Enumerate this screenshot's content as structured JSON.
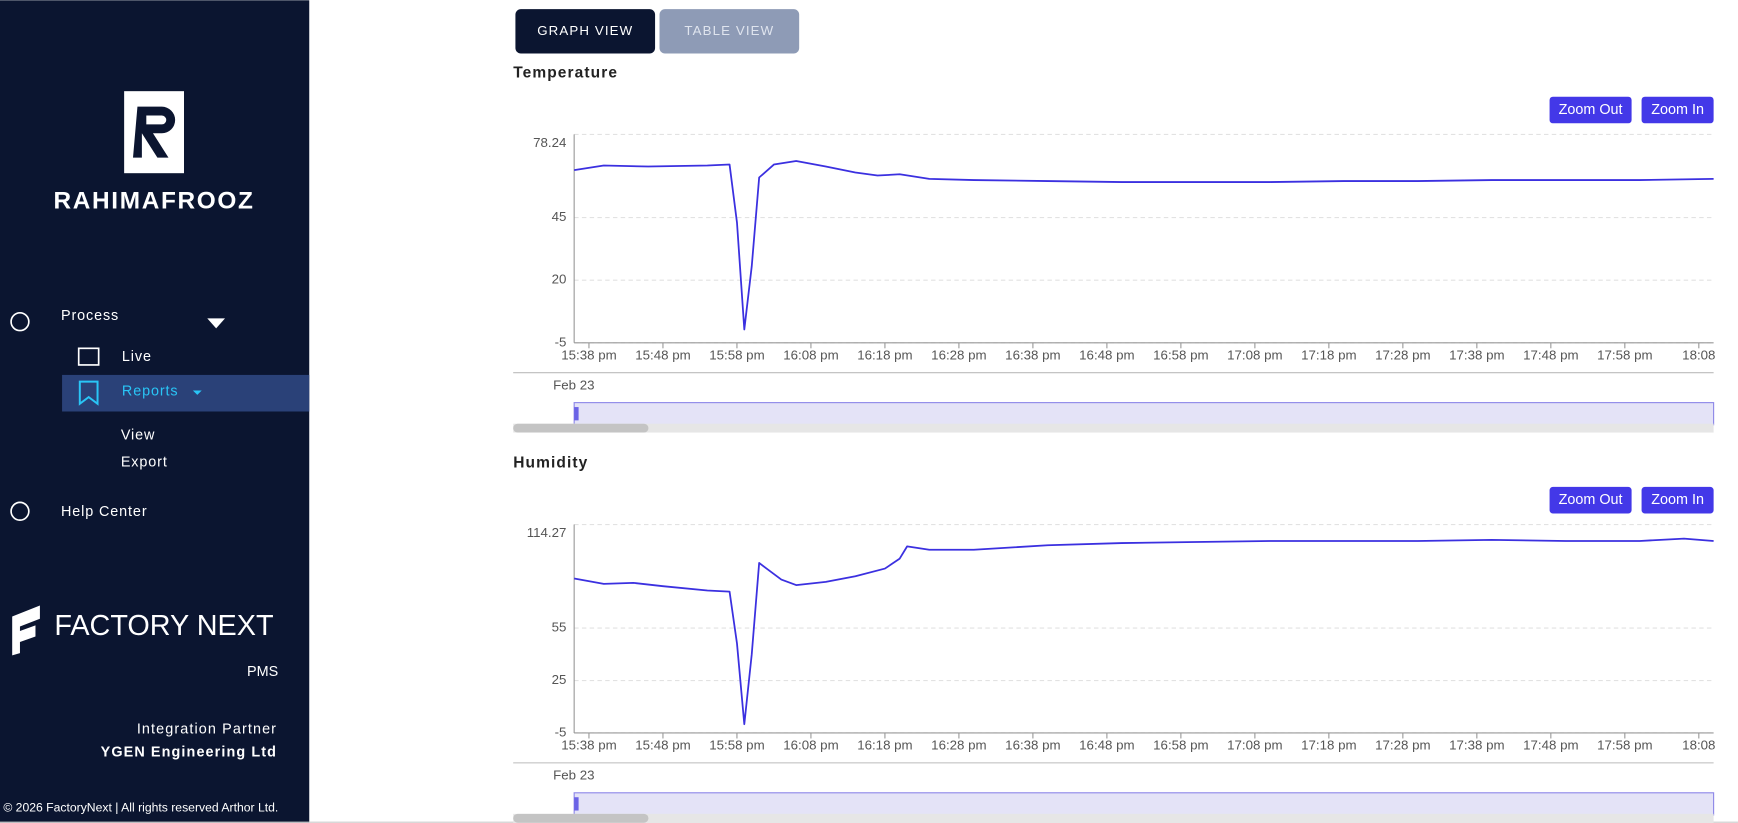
{
  "sidebar": {
    "brand": "RAHIMAFROOZ",
    "menu": {
      "process": "Process",
      "live": "Live",
      "reports": "Reports",
      "view": "View",
      "export": "Export",
      "help": "Help Center"
    },
    "partner_logo": "FACTORY NEXT",
    "product": "PMS",
    "partner_caption": "Integration Partner",
    "partner_name": "YGEN Engineering Ltd",
    "footer": "© 2026 FactoryNext | All rights reserved Arthor Ltd."
  },
  "tabs": [
    "GRAPH VIEW",
    "TABLE VIEW"
  ],
  "chart_data": [
    {
      "type": "line",
      "title": "Temperature",
      "controls": [
        "Zoom Out",
        "Zoom In"
      ],
      "navigator_date": "Feb 23",
      "color": "#3b30e0",
      "grid": true,
      "x": [
        "15:36",
        "15:40",
        "15:46",
        "15:54",
        "15:57",
        "15:58",
        "15:59",
        "16:00",
        "16:01",
        "16:03",
        "16:06",
        "16:10",
        "16:14",
        "16:17",
        "16:20",
        "16:24",
        "16:30",
        "16:40",
        "16:50",
        "17:00",
        "17:10",
        "17:20",
        "17:30",
        "17:40",
        "17:50",
        "18:00",
        "18:10"
      ],
      "values": [
        64,
        65.8,
        65.4,
        65.8,
        66.2,
        43,
        0.3,
        25.5,
        61,
        66.2,
        67.6,
        65.4,
        63,
        61.8,
        62.3,
        60.5,
        60,
        59.6,
        59.2,
        59.2,
        59.2,
        59.6,
        59.6,
        60,
        60,
        60,
        60.5
      ],
      "xlim": [
        "15:36",
        "18:10"
      ],
      "xticks": [
        {
          "value": "15:38",
          "label": "15:38 pm"
        },
        {
          "value": "15:48",
          "label": "15:48 pm"
        },
        {
          "value": "15:58",
          "label": "15:58 pm"
        },
        {
          "value": "16:08",
          "label": "16:08 pm"
        },
        {
          "value": "16:18",
          "label": "16:18 pm"
        },
        {
          "value": "16:28",
          "label": "16:28 pm"
        },
        {
          "value": "16:38",
          "label": "16:38 pm"
        },
        {
          "value": "16:48",
          "label": "16:48 pm"
        },
        {
          "value": "16:58",
          "label": "16:58 pm"
        },
        {
          "value": "17:08",
          "label": "17:08 pm"
        },
        {
          "value": "17:18",
          "label": "17:18 pm"
        },
        {
          "value": "17:28",
          "label": "17:28 pm"
        },
        {
          "value": "17:38",
          "label": "17:38 pm"
        },
        {
          "value": "17:48",
          "label": "17:48 pm"
        },
        {
          "value": "17:58",
          "label": "17:58 pm"
        },
        {
          "value": "18:08",
          "label": "18:08"
        }
      ],
      "ylim": [
        -5,
        78.24
      ],
      "yticks": [
        -5,
        20,
        45,
        78.24
      ]
    },
    {
      "type": "line",
      "title": "Humidity",
      "controls": [
        "Zoom Out",
        "Zoom In"
      ],
      "navigator_date": "Feb 23",
      "color": "#3b30e0",
      "grid": true,
      "x": [
        "15:36",
        "15:40",
        "15:44",
        "15:48",
        "15:54",
        "15:57",
        "15:58",
        "15:59",
        "16:00",
        "16:01",
        "16:02",
        "16:04",
        "16:06",
        "16:10",
        "16:14",
        "16:18",
        "16:20",
        "16:21",
        "16:24",
        "16:30",
        "16:40",
        "16:50",
        "17:00",
        "17:10",
        "17:20",
        "17:30",
        "17:40",
        "17:50",
        "18:00",
        "18:06",
        "18:10"
      ],
      "values": [
        83.4,
        80.3,
        80.9,
        79,
        76.5,
        75.9,
        46.2,
        0,
        39.9,
        92.3,
        89.1,
        82.8,
        79.6,
        81.5,
        84.7,
        89.1,
        94.8,
        101.8,
        99.9,
        99.9,
        102.4,
        103.7,
        104.3,
        104.9,
        104.9,
        104.9,
        105.5,
        104.9,
        104.9,
        106.2,
        104.9
      ],
      "xlim": [
        "15:36",
        "18:10"
      ],
      "xticks": [
        {
          "value": "15:38",
          "label": "15:38 pm"
        },
        {
          "value": "15:48",
          "label": "15:48 pm"
        },
        {
          "value": "15:58",
          "label": "15:58 pm"
        },
        {
          "value": "16:08",
          "label": "16:08 pm"
        },
        {
          "value": "16:18",
          "label": "16:18 pm"
        },
        {
          "value": "16:28",
          "label": "16:28 pm"
        },
        {
          "value": "16:38",
          "label": "16:38 pm"
        },
        {
          "value": "16:48",
          "label": "16:48 pm"
        },
        {
          "value": "16:58",
          "label": "16:58 pm"
        },
        {
          "value": "17:08",
          "label": "17:08 pm"
        },
        {
          "value": "17:18",
          "label": "17:18 pm"
        },
        {
          "value": "17:28",
          "label": "17:28 pm"
        },
        {
          "value": "17:38",
          "label": "17:38 pm"
        },
        {
          "value": "17:48",
          "label": "17:48 pm"
        },
        {
          "value": "17:58",
          "label": "17:58 pm"
        },
        {
          "value": "18:08",
          "label": "18:08"
        }
      ],
      "ylim": [
        -5,
        114.27
      ],
      "yticks": [
        -5,
        25,
        55,
        114.27
      ]
    }
  ]
}
